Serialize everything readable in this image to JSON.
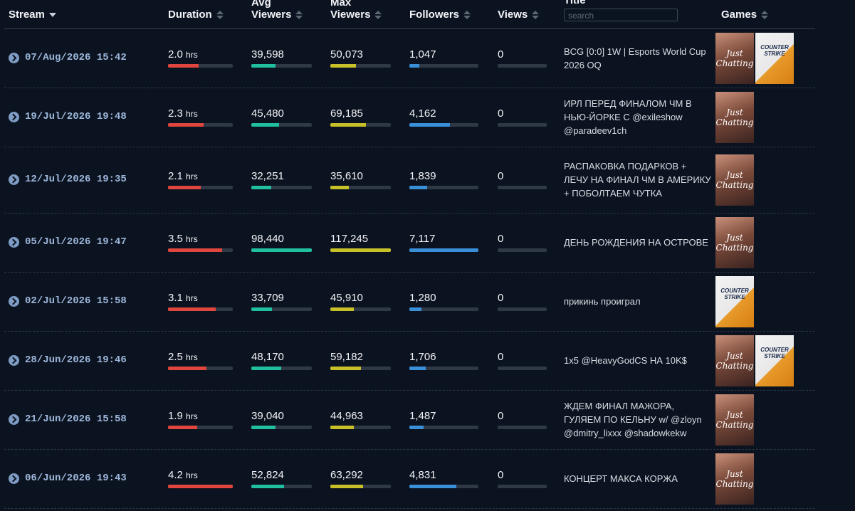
{
  "header": {
    "stream": "Stream",
    "duration": "Duration",
    "avg_viewers": "Avg Viewers",
    "max_viewers": "Max Viewers",
    "followers": "Followers",
    "views": "Views",
    "title": "Title",
    "search_placeholder": "search",
    "games": "Games"
  },
  "table": {
    "duration_unit": "hrs",
    "rows": [
      {
        "date": "07/Aug/2026 15:42",
        "duration": "2.0",
        "avg_viewers": "39,598",
        "max_viewers": "50,073",
        "followers": "1,047",
        "views": "0",
        "title": "BCG [0:0] 1W | Esports World Cup 2026 OQ",
        "games": [
          "Just Chatting",
          "COUNTER STRIKE"
        ]
      },
      {
        "date": "19/Jul/2026 19:48",
        "duration": "2.3",
        "avg_viewers": "45,480",
        "max_viewers": "69,185",
        "followers": "4,162",
        "views": "0",
        "title": "ИРЛ ПЕРЕД ФИНАЛОМ ЧМ В НЬЮ-ЙОРКЕ С @exileshow @paradeev1ch",
        "games": [
          "Just Chatting"
        ]
      },
      {
        "date": "12/Jul/2026 19:35",
        "duration": "2.1",
        "avg_viewers": "32,251",
        "max_viewers": "35,610",
        "followers": "1,839",
        "views": "0",
        "title": "РАСПАКОВКА ПОДАРКОВ + ЛЕЧУ НА ФИНАЛ ЧМ В АМЕРИКУ + ПОБОЛТАЕМ ЧУТКА",
        "games": [
          "Just Chatting"
        ]
      },
      {
        "date": "05/Jul/2026 19:47",
        "duration": "3.5",
        "avg_viewers": "98,440",
        "max_viewers": "117,245",
        "followers": "7,117",
        "views": "0",
        "title": "ДЕНЬ РОЖДЕНИЯ НА ОСТРОВЕ",
        "games": [
          "Just Chatting"
        ]
      },
      {
        "date": "02/Jul/2026 15:58",
        "duration": "3.1",
        "avg_viewers": "33,709",
        "max_viewers": "45,910",
        "followers": "1,280",
        "views": "0",
        "title": "прикинь проиграл",
        "games": [
          "COUNTER STRIKE"
        ]
      },
      {
        "date": "28/Jun/2026 19:46",
        "duration": "2.5",
        "avg_viewers": "48,170",
        "max_viewers": "59,182",
        "followers": "1,706",
        "views": "0",
        "title": "1x5 @HeavyGodCS НА 10K$",
        "games": [
          "Just Chatting",
          "COUNTER STRIKE"
        ]
      },
      {
        "date": "21/Jun/2026 15:58",
        "duration": "1.9",
        "avg_viewers": "39,040",
        "max_viewers": "44,963",
        "followers": "1,487",
        "views": "0",
        "title": "ЖДЕМ ФИНАЛ МАЖОРА, ГУЛЯЕМ ПО КЕЛЬНУ w/ @zloyn @dmitry_lixxx @shadowkekw",
        "games": [
          "Just Chatting"
        ]
      },
      {
        "date": "06/Jun/2026 19:43",
        "duration": "4.2",
        "avg_viewers": "52,824",
        "max_viewers": "63,292",
        "followers": "4,831",
        "views": "0",
        "title": "КОНЦЕРТ МАКСА КОРЖА",
        "games": [
          "Just Chatting"
        ]
      }
    ]
  }
}
